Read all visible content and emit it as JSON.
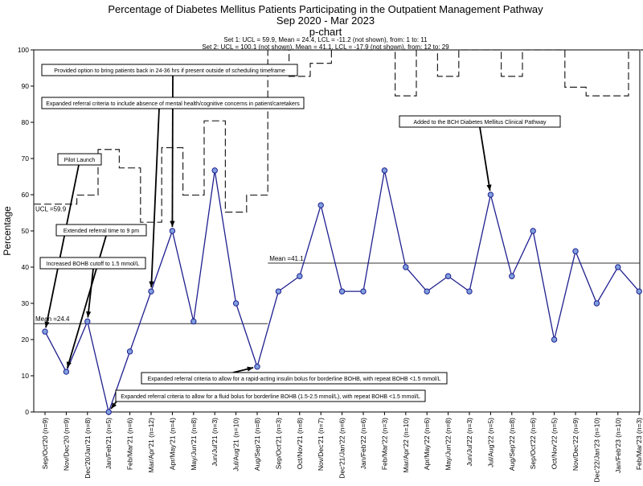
{
  "chart_data": {
    "type": "line",
    "title": "Percentage of Diabetes Mellitus Patients Participating in the Outpatient Management Pathway",
    "subtitle": "Sep 2020 - Mar 2023",
    "chart_kind": "p-chart",
    "ylabel": "Percentage",
    "xlabel": "",
    "ylim": [
      0,
      100
    ],
    "yticks": [
      0,
      10,
      20,
      30,
      40,
      50,
      60,
      70,
      80,
      90,
      100
    ],
    "set_info": [
      "Set 1: UCL = 59.9, Mean = 24.4, LCL = -11.2 (not shown), from: 1 to: 11",
      "Set 2: UCL = 100.1 (not shown), Mean = 41.1, LCL = -17.9 (not shown), from: 12 to: 29"
    ],
    "categories": [
      "Sep/Oct'20 (n=9)",
      "Nov/Dec'20 (n=9)",
      "Dec'20/Jan'21 (n=8)",
      "Jan/Feb'21 (n=5)",
      "Feb/Mar'21 (n=6)",
      "Mar/Apr'21 (n=12)",
      "Apr/May'21 (n=4)",
      "May/Jun'21 (n=8)",
      "Jun/Jul'21 (n=3)",
      "Jul/Aug'21 (n=10)",
      "Aug/Sep'21 (n=8)",
      "Sep/Oct'21 (n=3)",
      "Oct/Nov'21 (n=8)",
      "Nov/Dec'21 (n=7)",
      "Dec'21/Jan'22 (n=6)",
      "Jan/Feb'22 (n=6)",
      "Feb/Mar'22 (n=3)",
      "Mar/Apr'22 (n=10)",
      "Apr/May'22 (n=6)",
      "May/Jun'22 (n=8)",
      "Jun/Jul'22 (n=3)",
      "Jul/Aug'22 (n=5)",
      "Aug/Sep'22 (n=8)",
      "Sep/Oct'22 (n=6)",
      "Oct/Nov'22 (n=5)",
      "Nov/Dec'22 (n=9)",
      "Dec'22/Jan'23 (n=10)",
      "Jan/Feb'23 (n=10)",
      "Feb/Mar'23 (n=3)"
    ],
    "series": [
      {
        "name": "Percentage",
        "values": [
          22.2,
          11.1,
          25.0,
          0.0,
          16.7,
          33.3,
          50.0,
          25.0,
          66.7,
          30.0,
          12.5,
          33.3,
          37.5,
          57.1,
          33.3,
          33.3,
          66.7,
          40.0,
          33.3,
          37.5,
          33.3,
          60.0,
          37.5,
          50.0,
          20.0,
          44.4,
          30.0,
          40.0,
          33.3
        ]
      }
    ],
    "ucl_values": [
      57.4,
      57.4,
      59.9,
      72.5,
      67.4,
      52.4,
      73.0,
      59.9,
      80.4,
      55.2,
      59.9,
      100,
      92.7,
      96.3,
      100,
      100,
      100,
      87.3,
      100,
      92.7,
      100,
      100,
      92.7,
      100,
      100,
      89.7,
      87.3,
      87.3,
      100
    ],
    "mean_segments": [
      {
        "label": "Mean =24.4",
        "value": 24.4,
        "from": 1,
        "to": 11
      },
      {
        "label": "Mean =41.1",
        "value": 41.1,
        "from": 12,
        "to": 29
      }
    ],
    "ucl_label": "UCL =59.9",
    "annotations": [
      {
        "text": "Provided option to bring patients back in 24-36 hrs if present outside of scheduling timeframe",
        "point": 6,
        "value": 50.0
      },
      {
        "text": "Expanded referral criteria to include absence of mental health/cognitive concerns in patient/caretakers",
        "point": 5,
        "value": 33.3
      },
      {
        "text": "Added to the BCH Diabetes Mellitus Clinical Pathway",
        "point": 21,
        "value": 60.0
      },
      {
        "text": "Pilot Launch",
        "point": 0,
        "value": 22.2
      },
      {
        "text": "Extended referral time to 9 pm",
        "point": 1,
        "value": 11.1
      },
      {
        "text": "Increased BOHB cutoff to 1.5 mmol/L",
        "point": 2,
        "value": 25.0
      },
      {
        "text": "Expanded referral criteria to allow for a rapid-acting insulin bolus for borderline BOHB, with repeat BOHB <1.5 mmol/L",
        "point": 10,
        "value": 12.5
      },
      {
        "text": "Expanded referral criteria to allow for a fluid bolus for borderline BOHB (1.5-2.5 mmol/L), with repeat BOHB <1.5 mmol/L",
        "point": 3,
        "value": 0.0
      }
    ],
    "colors": {
      "line": "#1f1f8f",
      "marker_fill": "#7f9fdf",
      "marker_stroke": "#1f1f8f",
      "mean": "#333333",
      "ucl": "#222222"
    }
  }
}
